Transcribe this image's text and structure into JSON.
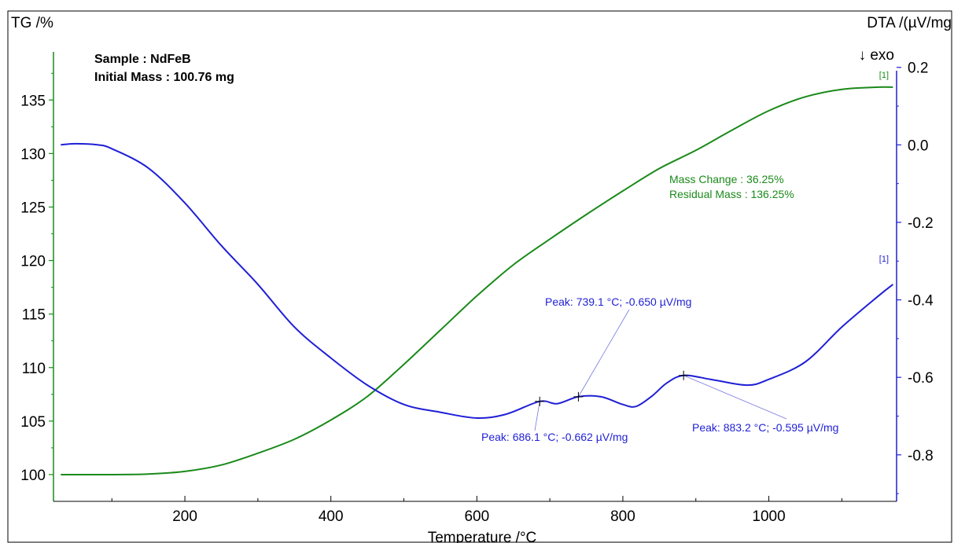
{
  "chart_data": {
    "type": "line",
    "xlabel": "Temperature /°C",
    "ylabel_left": "TG /%",
    "ylabel_right": "DTA /(µV/mg",
    "exo_label": "↓ exo",
    "xlim": [
      20,
      1175
    ],
    "ylim_left": [
      97.5,
      139.5
    ],
    "ylim_right": [
      -0.92,
      0.24
    ],
    "x_ticks": [
      200,
      400,
      600,
      800,
      1000
    ],
    "y_ticks_left": [
      100,
      105,
      110,
      115,
      120,
      125,
      130,
      135
    ],
    "y_ticks_right": [
      -0.8,
      -0.6,
      -0.4,
      -0.2,
      0.0,
      0.2
    ],
    "y_tick_labels_right": [
      "-0.8",
      "-0.6",
      "-0.4",
      "-0.2",
      "0.0",
      "0.2"
    ],
    "sample_info": [
      "Sample : NdFeB",
      "Initial Mass : 100.76 mg"
    ],
    "series": [
      {
        "tag": "[1]",
        "color": "#1a8a1a",
        "axis": "left",
        "points": [
          [
            30,
            100
          ],
          [
            100,
            100
          ],
          [
            150,
            100.05
          ],
          [
            200,
            100.3
          ],
          [
            250,
            100.9
          ],
          [
            300,
            102
          ],
          [
            350,
            103.3
          ],
          [
            400,
            105.1
          ],
          [
            450,
            107.3
          ],
          [
            500,
            110.3
          ],
          [
            550,
            113.5
          ],
          [
            600,
            116.7
          ],
          [
            650,
            119.6
          ],
          [
            700,
            122
          ],
          [
            750,
            124.3
          ],
          [
            800,
            126.5
          ],
          [
            850,
            128.6
          ],
          [
            900,
            130.3
          ],
          [
            950,
            132.2
          ],
          [
            1000,
            134
          ],
          [
            1050,
            135.3
          ],
          [
            1100,
            136
          ],
          [
            1150,
            136.2
          ],
          [
            1170,
            136.2
          ]
        ]
      },
      {
        "tag": "[1]",
        "color": "#1f1fd6",
        "axis": "right",
        "points": [
          [
            30,
            0.0
          ],
          [
            50,
            0.003
          ],
          [
            80,
            0.0
          ],
          [
            100,
            -0.01
          ],
          [
            150,
            -0.06
          ],
          [
            200,
            -0.15
          ],
          [
            250,
            -0.26
          ],
          [
            300,
            -0.36
          ],
          [
            350,
            -0.47
          ],
          [
            400,
            -0.55
          ],
          [
            450,
            -0.62
          ],
          [
            500,
            -0.67
          ],
          [
            550,
            -0.69
          ],
          [
            600,
            -0.705
          ],
          [
            640,
            -0.695
          ],
          [
            686.1,
            -0.662
          ],
          [
            710,
            -0.668
          ],
          [
            739.1,
            -0.65
          ],
          [
            770,
            -0.65
          ],
          [
            800,
            -0.67
          ],
          [
            818,
            -0.675
          ],
          [
            840,
            -0.648
          ],
          [
            860,
            -0.615
          ],
          [
            883.2,
            -0.595
          ],
          [
            920,
            -0.605
          ],
          [
            970,
            -0.62
          ],
          [
            1000,
            -0.605
          ],
          [
            1050,
            -0.56
          ],
          [
            1100,
            -0.47
          ],
          [
            1150,
            -0.39
          ],
          [
            1170,
            -0.36
          ]
        ]
      }
    ],
    "annotations": {
      "mass_change": "Mass Change : 36.25%",
      "residual_mass": "Residual Mass : 136.25%",
      "peaks": [
        {
          "x": 686.1,
          "y": -0.662,
          "label": "Peak: 686.1 °C; -0.662 µV/mg"
        },
        {
          "x": 739.1,
          "y": -0.65,
          "label": "Peak: 739.1 °C; -0.650 µV/mg"
        },
        {
          "x": 883.2,
          "y": -0.595,
          "label": "Peak: 883.2 °C; -0.595 µV/mg"
        }
      ]
    }
  }
}
